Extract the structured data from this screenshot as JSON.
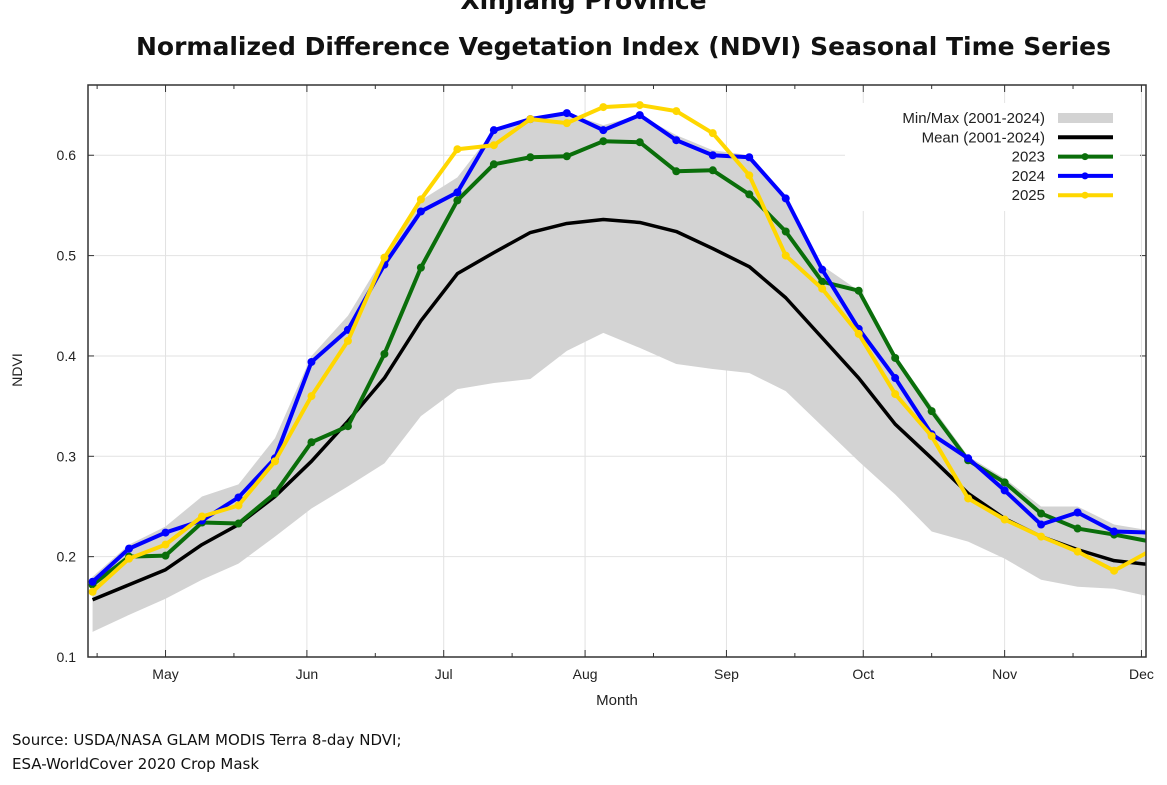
{
  "chart_data": {
    "type": "line",
    "title": "Xinjiang Province",
    "subtitle": "Normalized Difference Vegetation Index (NDVI) Seasonal Time Series",
    "xlabel": "Month",
    "ylabel": "NDVI",
    "ylim": [
      0.1,
      0.67
    ],
    "xlim": [
      "04-14",
      "12-02"
    ],
    "yticks": [
      "0.1",
      "0.2",
      "0.3",
      "0.4",
      "0.5",
      "0.6"
    ],
    "xticks": [
      {
        "label": "May",
        "date": "05-01"
      },
      {
        "label": "Jun",
        "date": "06-01"
      },
      {
        "label": "Jul",
        "date": "07-01"
      },
      {
        "label": "Aug",
        "date": "08-01"
      },
      {
        "label": "Sep",
        "date": "09-01"
      },
      {
        "label": "Oct",
        "date": "10-01"
      },
      {
        "label": "Nov",
        "date": "11-01"
      },
      {
        "label": "Dec",
        "date": "12-01"
      }
    ],
    "grid": true,
    "legend_position": "top-right",
    "x": [
      "04-15",
      "04-23",
      "05-01",
      "05-09",
      "05-17",
      "05-25",
      "06-02",
      "06-10",
      "06-18",
      "06-26",
      "07-04",
      "07-12",
      "07-20",
      "07-28",
      "08-05",
      "08-13",
      "08-21",
      "08-29",
      "09-06",
      "09-14",
      "09-22",
      "09-30",
      "10-08",
      "10-16",
      "10-24",
      "11-01",
      "11-09",
      "11-17",
      "11-25",
      "12-03"
    ],
    "band": {
      "name": "Min/Max (2001-2024)",
      "color": "#d3d3d3",
      "min": [
        0.125,
        0.142,
        0.158,
        0.177,
        0.193,
        0.22,
        0.248,
        0.27,
        0.293,
        0.34,
        0.367,
        0.373,
        0.377,
        0.405,
        0.423,
        0.408,
        0.392,
        0.387,
        0.383,
        0.365,
        0.33,
        0.295,
        0.262,
        0.225,
        0.215,
        0.198,
        0.177,
        0.17,
        0.168,
        0.16
      ],
      "max": [
        0.18,
        0.212,
        0.23,
        0.26,
        0.272,
        0.318,
        0.4,
        0.44,
        0.5,
        0.555,
        0.578,
        0.625,
        0.637,
        0.642,
        0.63,
        0.64,
        0.62,
        0.605,
        0.6,
        0.56,
        0.49,
        0.465,
        0.4,
        0.35,
        0.3,
        0.278,
        0.25,
        0.25,
        0.232,
        0.226
      ]
    },
    "series": [
      {
        "name": "Mean (2001-2024)",
        "color": "#000000",
        "markers": false,
        "values": [
          0.157,
          0.172,
          0.187,
          0.212,
          0.232,
          0.26,
          0.295,
          0.335,
          0.378,
          0.435,
          0.482,
          0.503,
          0.523,
          0.532,
          0.536,
          0.533,
          0.524,
          0.507,
          0.489,
          0.458,
          0.418,
          0.378,
          0.332,
          0.298,
          0.263,
          0.238,
          0.22,
          0.207,
          0.196,
          0.192
        ]
      },
      {
        "name": "2023",
        "color": "#0a6e0a",
        "markers": true,
        "values": [
          0.172,
          0.2,
          0.201,
          0.234,
          0.233,
          0.263,
          0.314,
          0.33,
          0.402,
          0.488,
          0.555,
          0.591,
          0.598,
          0.599,
          0.614,
          0.613,
          0.584,
          0.585,
          0.561,
          0.524,
          0.474,
          0.465,
          0.398,
          0.345,
          0.296,
          0.274,
          0.243,
          0.228,
          0.222,
          0.215
        ]
      },
      {
        "name": "2024",
        "color": "#0000ff",
        "markers": true,
        "values": [
          0.175,
          0.208,
          0.224,
          0.236,
          0.259,
          0.298,
          0.394,
          0.426,
          0.491,
          0.544,
          0.563,
          0.625,
          0.636,
          0.642,
          0.625,
          0.64,
          0.615,
          0.6,
          0.598,
          0.557,
          0.486,
          0.427,
          0.378,
          0.322,
          0.298,
          0.266,
          0.232,
          0.244,
          0.225,
          0.224
        ]
      },
      {
        "name": "2025",
        "color": "#ffd700",
        "markers": true,
        "values": [
          0.165,
          0.198,
          0.212,
          0.24,
          0.251,
          0.295,
          0.36,
          0.415,
          0.498,
          0.556,
          0.606,
          0.61,
          0.636,
          0.632,
          0.648,
          0.65,
          0.644,
          0.622,
          0.58,
          0.5,
          0.467,
          0.422,
          0.362,
          0.32,
          0.258,
          0.237,
          0.22,
          0.205,
          0.186,
          0.206
        ]
      }
    ]
  },
  "source": {
    "line1": "Source: USDA/NASA GLAM MODIS Terra 8-day NDVI;",
    "line2": "ESA-WorldCover 2020 Crop Mask"
  }
}
